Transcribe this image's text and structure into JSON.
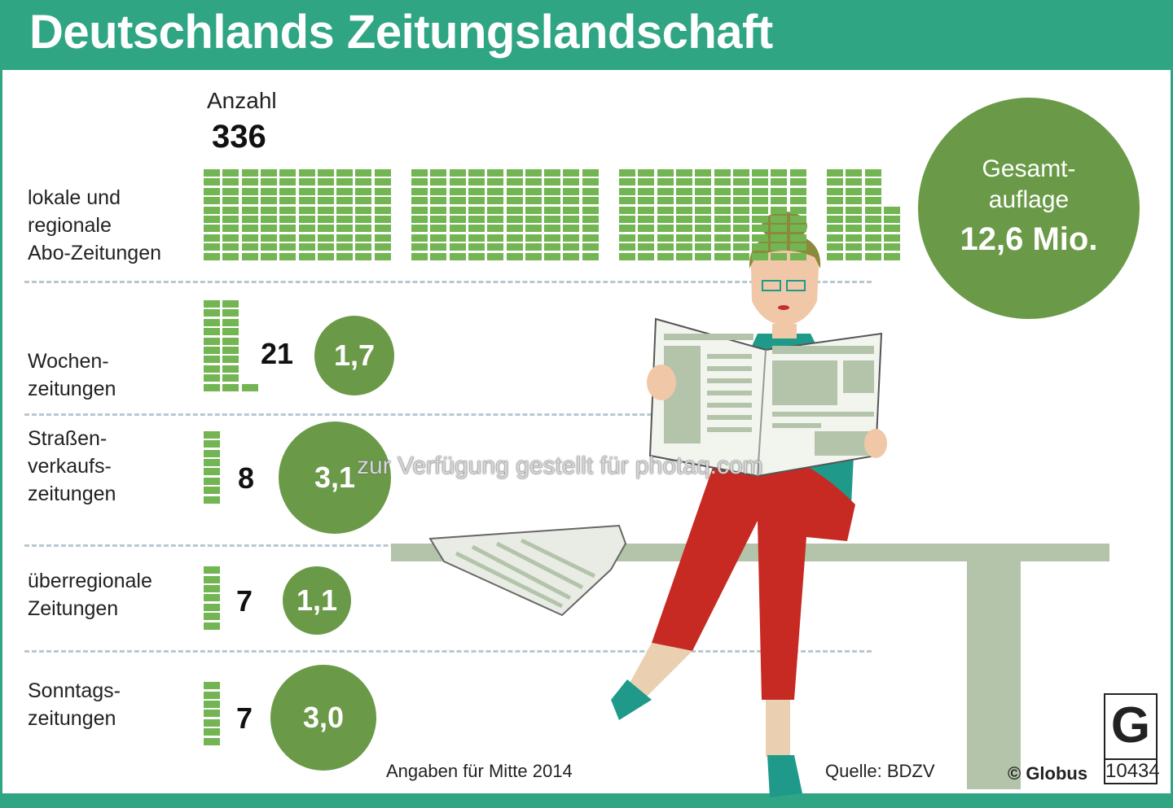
{
  "title": "Deutschlands Zeitungslandschaft",
  "count_label": "Anzahl",
  "total_circulation": {
    "label_line1": "Gesamt-",
    "label_line2": "auflage",
    "value": "12,6 Mio."
  },
  "chart_data": {
    "type": "pictogram",
    "title": "Deutschlands Zeitungslandschaft",
    "units": {
      "count": "Anzahl",
      "circulation": "Mio."
    },
    "categories": [
      {
        "label": "lokale und\nregionale\nAbo-Zeitungen",
        "count": 336,
        "count_text": "336",
        "circulation_text": ""
      },
      {
        "label": "Wochen-\nzeitungen",
        "count": 21,
        "count_text": "21",
        "circulation": 1.7,
        "circulation_text": "1,7"
      },
      {
        "label": "Straßen-\nverkaufs-\nzeitungen",
        "count": 8,
        "count_text": "8",
        "circulation": 3.1,
        "circulation_text": "3,1"
      },
      {
        "label": "überregionale\nZeitungen",
        "count": 7,
        "count_text": "7",
        "circulation": 1.1,
        "circulation_text": "1,1"
      },
      {
        "label": "Sonntags-\nzeitungen",
        "count": 7,
        "count_text": "7",
        "circulation": 3.0,
        "circulation_text": "3,0"
      }
    ],
    "total_circulation": 12.6,
    "colors": {
      "blocks": "#72b552",
      "circles": "#6a9a48",
      "header": "#2fa584"
    }
  },
  "footer": {
    "note": "Angaben für Mitte 2014",
    "source": "Quelle: BDZV",
    "copyright": "© Globus",
    "logo_number": "10434",
    "logo_letter": "G"
  },
  "watermark": "zur Verfügung gestellt für photaq.com"
}
